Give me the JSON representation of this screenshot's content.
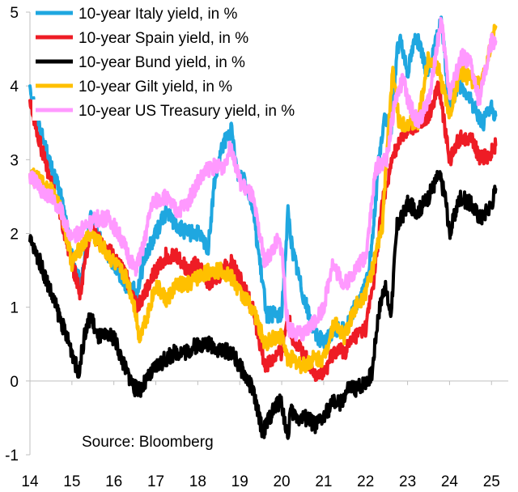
{
  "chart_data": {
    "type": "line",
    "title": "",
    "xlabel": "",
    "ylabel": "",
    "xlim": [
      2014,
      2025.4
    ],
    "ylim": [
      -1,
      5
    ],
    "x_ticks": [
      {
        "value": 2014,
        "label": "14"
      },
      {
        "value": 2015,
        "label": "15"
      },
      {
        "value": 2016,
        "label": "16"
      },
      {
        "value": 2017,
        "label": "17"
      },
      {
        "value": 2018,
        "label": "18"
      },
      {
        "value": 2019,
        "label": "19"
      },
      {
        "value": 2020,
        "label": "20"
      },
      {
        "value": 2021,
        "label": "21"
      },
      {
        "value": 2022,
        "label": "22"
      },
      {
        "value": 2023,
        "label": "23"
      },
      {
        "value": 2024,
        "label": "24"
      },
      {
        "value": 2025,
        "label": "25"
      }
    ],
    "y_ticks": [
      {
        "value": 5,
        "label": "5"
      },
      {
        "value": 4,
        "label": "4"
      },
      {
        "value": 3,
        "label": "3"
      },
      {
        "value": 2,
        "label": "2"
      },
      {
        "value": 1,
        "label": "1"
      },
      {
        "value": 0,
        "label": "0"
      },
      {
        "value": -1,
        "label": "-1"
      }
    ],
    "grid": false,
    "legend_position": "top-left",
    "source": "Source: Bloomberg",
    "draw_order": [
      "italy",
      "spain",
      "gilt",
      "ust",
      "bund"
    ],
    "series": [
      {
        "id": "italy",
        "name": "10-year Italy yield, in %",
        "color": "#1FA7E0",
        "x": [
          2014.0,
          2014.25,
          2014.5,
          2014.75,
          2015.0,
          2015.2,
          2015.45,
          2015.75,
          2016.0,
          2016.3,
          2016.55,
          2016.75,
          2017.0,
          2017.25,
          2017.5,
          2017.75,
          2018.0,
          2018.25,
          2018.4,
          2018.6,
          2018.8,
          2018.95,
          2019.1,
          2019.3,
          2019.5,
          2019.65,
          2019.8,
          2020.0,
          2020.15,
          2020.25,
          2020.5,
          2020.75,
          2021.0,
          2021.25,
          2021.5,
          2021.75,
          2022.0,
          2022.15,
          2022.3,
          2022.45,
          2022.6,
          2022.75,
          2022.85,
          2023.0,
          2023.2,
          2023.45,
          2023.6,
          2023.8,
          2024.0,
          2024.2,
          2024.4,
          2024.6,
          2024.8,
          2025.0,
          2025.1
        ],
        "values": [
          4.0,
          3.4,
          2.9,
          2.5,
          1.7,
          1.3,
          2.2,
          1.8,
          1.6,
          1.3,
          1.2,
          1.7,
          2.0,
          2.3,
          2.1,
          2.0,
          2.0,
          1.8,
          2.7,
          3.2,
          3.4,
          2.8,
          2.8,
          2.4,
          1.5,
          0.9,
          0.9,
          0.9,
          2.3,
          1.8,
          1.2,
          0.7,
          0.5,
          0.7,
          0.7,
          1.0,
          1.3,
          1.8,
          2.9,
          3.6,
          3.3,
          4.5,
          4.6,
          4.2,
          4.7,
          4.2,
          4.4,
          4.9,
          3.7,
          4.0,
          3.9,
          3.7,
          3.5,
          3.7,
          3.6
        ]
      },
      {
        "id": "spain",
        "name": "10-year Spain yield, in %",
        "color": "#EE1C25",
        "x": [
          2014.0,
          2014.25,
          2014.5,
          2014.75,
          2015.0,
          2015.2,
          2015.45,
          2015.75,
          2016.0,
          2016.3,
          2016.55,
          2016.75,
          2017.0,
          2017.25,
          2017.5,
          2017.75,
          2018.0,
          2018.3,
          2018.6,
          2018.8,
          2019.0,
          2019.3,
          2019.6,
          2019.8,
          2020.0,
          2020.15,
          2020.25,
          2020.5,
          2020.75,
          2021.0,
          2021.25,
          2021.5,
          2021.75,
          2022.0,
          2022.2,
          2022.4,
          2022.6,
          2022.8,
          2023.0,
          2023.25,
          2023.5,
          2023.75,
          2024.0,
          2024.25,
          2024.5,
          2024.75,
          2025.0,
          2025.1
        ],
        "values": [
          3.8,
          3.2,
          2.7,
          2.2,
          1.6,
          1.2,
          2.1,
          1.8,
          1.7,
          1.4,
          1.0,
          1.2,
          1.5,
          1.7,
          1.7,
          1.5,
          1.6,
          1.3,
          1.5,
          1.6,
          1.4,
          1.0,
          0.2,
          0.3,
          0.4,
          0.9,
          0.6,
          0.4,
          0.1,
          0.1,
          0.4,
          0.4,
          0.6,
          0.7,
          1.4,
          2.4,
          2.9,
          3.3,
          3.4,
          3.5,
          3.6,
          4.0,
          3.0,
          3.3,
          3.3,
          3.0,
          3.1,
          3.2
        ]
      },
      {
        "id": "gilt",
        "name": "10-year Gilt yield, in %",
        "color": "#FFC000",
        "x": [
          2014.0,
          2014.25,
          2014.5,
          2014.75,
          2015.0,
          2015.2,
          2015.45,
          2015.75,
          2016.0,
          2016.3,
          2016.5,
          2016.6,
          2016.8,
          2017.0,
          2017.25,
          2017.5,
          2017.75,
          2018.0,
          2018.3,
          2018.6,
          2018.8,
          2019.0,
          2019.3,
          2019.6,
          2019.8,
          2020.0,
          2020.15,
          2020.25,
          2020.5,
          2020.75,
          2021.0,
          2021.25,
          2021.5,
          2021.75,
          2022.0,
          2022.2,
          2022.4,
          2022.55,
          2022.65,
          2022.8,
          2023.0,
          2023.25,
          2023.5,
          2023.75,
          2024.0,
          2024.25,
          2024.5,
          2024.75,
          2025.0,
          2025.1
        ],
        "values": [
          2.8,
          2.7,
          2.6,
          2.3,
          1.6,
          1.8,
          2.0,
          1.8,
          1.6,
          1.4,
          1.0,
          0.6,
          0.9,
          1.3,
          1.1,
          1.3,
          1.3,
          1.4,
          1.5,
          1.5,
          1.4,
          1.2,
          1.0,
          0.5,
          0.6,
          0.6,
          0.3,
          0.3,
          0.2,
          0.3,
          0.3,
          0.8,
          0.6,
          1.0,
          1.2,
          1.6,
          2.1,
          3.5,
          4.2,
          3.5,
          3.5,
          3.5,
          4.4,
          4.2,
          3.6,
          4.2,
          4.1,
          4.0,
          4.6,
          4.8
        ]
      },
      {
        "id": "ust",
        "name": "10-year US Treasury yield, in %",
        "color": "#FF99FF",
        "x": [
          2014.0,
          2014.25,
          2014.5,
          2014.75,
          2015.0,
          2015.3,
          2015.6,
          2015.9,
          2016.2,
          2016.5,
          2016.7,
          2016.9,
          2017.2,
          2017.5,
          2017.75,
          2018.0,
          2018.3,
          2018.6,
          2018.8,
          2019.0,
          2019.3,
          2019.6,
          2019.9,
          2020.0,
          2020.15,
          2020.25,
          2020.5,
          2020.75,
          2021.0,
          2021.2,
          2021.5,
          2021.75,
          2022.0,
          2022.25,
          2022.5,
          2022.7,
          2022.9,
          2023.0,
          2023.25,
          2023.5,
          2023.8,
          2024.0,
          2024.3,
          2024.5,
          2024.7,
          2024.9,
          2025.0,
          2025.1
        ],
        "values": [
          2.8,
          2.6,
          2.5,
          2.3,
          1.9,
          2.1,
          2.2,
          2.2,
          1.9,
          1.5,
          1.8,
          2.4,
          2.5,
          2.3,
          2.4,
          2.7,
          2.9,
          2.9,
          3.2,
          2.7,
          2.5,
          1.6,
          1.9,
          1.8,
          0.7,
          0.7,
          0.6,
          0.8,
          1.0,
          1.6,
          1.3,
          1.5,
          1.7,
          2.9,
          3.0,
          3.8,
          4.1,
          3.8,
          3.5,
          3.8,
          4.9,
          3.9,
          4.4,
          4.3,
          3.8,
          4.3,
          4.6,
          4.6
        ]
      },
      {
        "id": "bund",
        "name": "10-year Bund yield, in %",
        "color": "#000000",
        "x": [
          2014.0,
          2014.25,
          2014.5,
          2014.75,
          2015.0,
          2015.15,
          2015.3,
          2015.45,
          2015.6,
          2015.8,
          2016.0,
          2016.25,
          2016.5,
          2016.65,
          2016.9,
          2017.0,
          2017.25,
          2017.5,
          2017.75,
          2018.0,
          2018.3,
          2018.6,
          2018.8,
          2019.0,
          2019.3,
          2019.55,
          2019.7,
          2019.9,
          2020.0,
          2020.15,
          2020.2,
          2020.4,
          2020.6,
          2020.8,
          2021.0,
          2021.2,
          2021.4,
          2021.6,
          2021.8,
          2022.0,
          2022.15,
          2022.3,
          2022.45,
          2022.6,
          2022.75,
          2022.85,
          2023.0,
          2023.25,
          2023.5,
          2023.75,
          2023.9,
          2024.0,
          2024.25,
          2024.5,
          2024.75,
          2025.0,
          2025.1
        ],
        "values": [
          1.9,
          1.6,
          1.2,
          0.8,
          0.4,
          0.1,
          0.6,
          0.9,
          0.6,
          0.6,
          0.6,
          0.2,
          -0.1,
          -0.1,
          0.1,
          0.2,
          0.3,
          0.4,
          0.4,
          0.5,
          0.5,
          0.4,
          0.4,
          0.2,
          -0.1,
          -0.7,
          -0.5,
          -0.3,
          -0.3,
          -0.8,
          -0.4,
          -0.5,
          -0.5,
          -0.6,
          -0.5,
          -0.3,
          -0.3,
          -0.1,
          -0.1,
          0.0,
          0.1,
          0.9,
          1.3,
          0.9,
          2.1,
          2.2,
          2.4,
          2.3,
          2.5,
          2.8,
          2.5,
          2.0,
          2.5,
          2.4,
          2.2,
          2.4,
          2.6
        ]
      }
    ]
  }
}
